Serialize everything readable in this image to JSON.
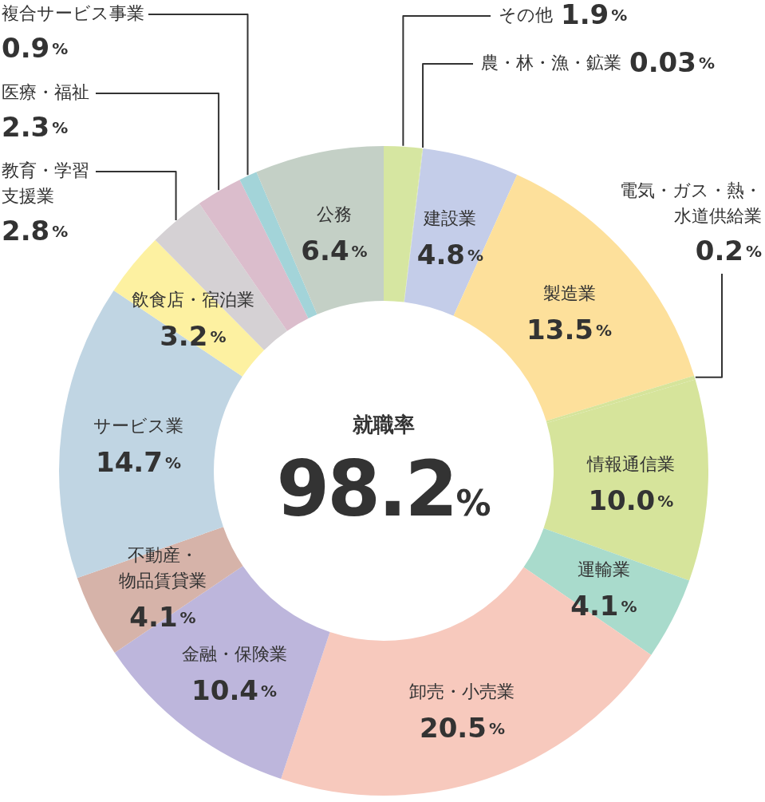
{
  "chart_data": {
    "type": "donut",
    "title": "就職率",
    "annotations": [
      "98.2%"
    ],
    "categories": [
      "その他",
      "農・林・漁・鉱業",
      "建設業",
      "製造業",
      "電気・ガス・熱・水道供給業",
      "情報通信業",
      "運輸業",
      "卸売・小売業",
      "金融・保険業",
      "不動産・物品賃貸業",
      "サービス業",
      "飲食店・宿泊業",
      "教育・学習支援業",
      "医療・福祉",
      "複合サービス事業",
      "公務"
    ],
    "values": [
      1.9,
      0.03,
      4.8,
      13.5,
      0.2,
      10.0,
      4.1,
      20.5,
      10.4,
      4.1,
      14.7,
      3.2,
      2.8,
      2.3,
      0.9,
      6.4
    ],
    "value_labels": [
      "1.9%",
      "0.03%",
      "4.8%",
      "13.5%",
      "0.2%",
      "10.0%",
      "4.1%",
      "20.5%",
      "10.4%",
      "4.1%",
      "14.7%",
      "3.2%",
      "2.8%",
      "2.3%",
      "0.9%",
      "6.4%"
    ],
    "colors": [
      "#d6e6a1",
      "#d6e6a1",
      "#c4cde9",
      "#fde09b",
      "#d6e49b",
      "#d6e49b",
      "#a9dbcc",
      "#f7c9bd",
      "#bdb6dc",
      "#d6b3a9",
      "#c0d5e3",
      "#fdf1a1",
      "#d5d1d4",
      "#dbbdcc",
      "#a3d4d9",
      "#c4d0c6"
    ]
  }
}
